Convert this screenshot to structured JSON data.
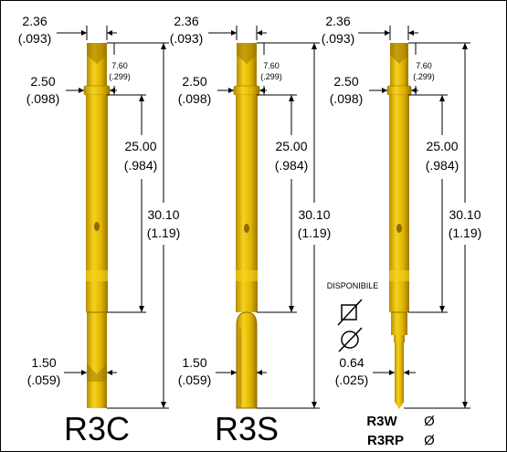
{
  "colors": {
    "frame": "#000000",
    "gold": "#d9a800",
    "gold_light": "#f2cc1a",
    "gold_dark": "#8c6a00",
    "line": "#000000"
  },
  "common": {
    "dim_top_mm": "2.36",
    "dim_top_in": "(.093)",
    "dim_ring_mm": "2.50",
    "dim_ring_in": "(.098)",
    "dim_small_mm": "7.60",
    "dim_small_in": "(.299)",
    "dim_mid_mm": "25.00",
    "dim_mid_in": "(.984)",
    "dim_total_mm": "30.10",
    "dim_total_in": "(1.19)"
  },
  "probes": [
    {
      "name": "R3C",
      "tip_style": "crown",
      "tip_mm": "1.50",
      "tip_in": "(.059)"
    },
    {
      "name": "R3S",
      "tip_style": "spear",
      "tip_mm": "1.50",
      "tip_in": "(.059)"
    },
    {
      "name_lines": [
        "R3W",
        "R3RP"
      ],
      "tip_style": "needle",
      "tip_mm": "0.64",
      "tip_in": "(.025)",
      "availability": "DISPONIBILE",
      "symbols": [
        "diameter-square-icon",
        "diameter-circle-icon"
      ],
      "inline_symbols": [
        "Ø",
        "Ø"
      ]
    }
  ]
}
